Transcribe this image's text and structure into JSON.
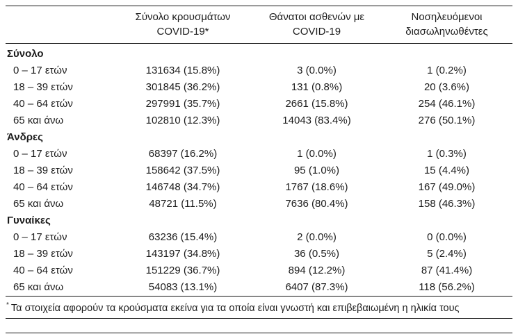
{
  "table": {
    "columns": [
      {
        "lines": [
          "Σύνολο κρουσμάτων",
          "COVID-19*"
        ]
      },
      {
        "lines": [
          "Θάνατοι ασθενών με",
          "COVID-19"
        ]
      },
      {
        "lines": [
          "Νοσηλευόμενοι",
          "διασωληνωθέντες"
        ]
      }
    ],
    "groups": [
      {
        "label": "Σύνολο",
        "rows": [
          {
            "label": "0 – 17 ετών",
            "cases": "131634 (15.8%)",
            "deaths": "3 (0.0%)",
            "intubated": "1 (0.2%)"
          },
          {
            "label": "18 – 39 ετών",
            "cases": "301845 (36.2%)",
            "deaths": "131 (0.8%)",
            "intubated": "20 (3.6%)"
          },
          {
            "label": "40 – 64 ετών",
            "cases": "297991 (35.7%)",
            "deaths": "2661 (15.8%)",
            "intubated": "254 (46.1%)"
          },
          {
            "label": "65 και άνω",
            "cases": "102810 (12.3%)",
            "deaths": "14043 (83.4%)",
            "intubated": "276 (50.1%)"
          }
        ]
      },
      {
        "label": "Άνδρες",
        "rows": [
          {
            "label": "0 – 17 ετών",
            "cases": "68397 (16.2%)",
            "deaths": "1 (0.0%)",
            "intubated": "1 (0.3%)"
          },
          {
            "label": "18 – 39 ετών",
            "cases": "158642 (37.5%)",
            "deaths": "95 (1.0%)",
            "intubated": "15 (4.4%)"
          },
          {
            "label": "40 – 64 ετών",
            "cases": "146748 (34.7%)",
            "deaths": "1767 (18.6%)",
            "intubated": "167 (49.0%)"
          },
          {
            "label": "65 και άνω",
            "cases": "48721 (11.5%)",
            "deaths": "7636 (80.4%)",
            "intubated": "158 (46.3%)"
          }
        ]
      },
      {
        "label": "Γυναίκες",
        "rows": [
          {
            "label": "0 – 17 ετών",
            "cases": "63236 (15.4%)",
            "deaths": "2 (0.0%)",
            "intubated": "0 (0.0%)"
          },
          {
            "label": "18 – 39 ετών",
            "cases": "143197 (34.8%)",
            "deaths": "36 (0.5%)",
            "intubated": "5 (2.4%)"
          },
          {
            "label": "40 – 64 ετών",
            "cases": "151229 (36.7%)",
            "deaths": "894 (12.2%)",
            "intubated": "87 (41.4%)"
          },
          {
            "label": "65 και άνω",
            "cases": "54083 (13.1%)",
            "deaths": "6407 (87.3%)",
            "intubated": "118 (56.2%)"
          }
        ]
      }
    ],
    "footnote": {
      "marker": "*",
      "text": "Τα στοιχεία αφορούν τα κρούσματα εκείνα για τα οποία είναι γνωστή και επιβεβαιωμένη η ηλικία τους"
    }
  }
}
